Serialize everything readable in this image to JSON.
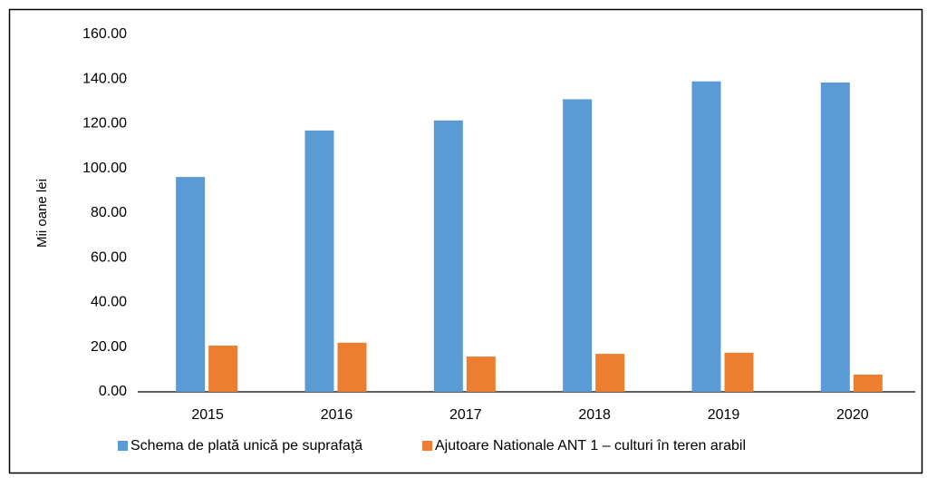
{
  "chart_data": {
    "type": "bar",
    "y_label": "Mii oane lei",
    "categories": [
      "2015",
      "2016",
      "2017",
      "2018",
      "2019",
      "2020"
    ],
    "series": [
      {
        "name": "Schema de plată unică pe suprafaţă",
        "color": "#5b9bd5",
        "values": [
          96.2,
          117,
          121.5,
          131,
          139,
          138.5
        ]
      },
      {
        "name": "Ajutoare Nationale ANT 1 – culturi în teren arabil",
        "color": "#ed7d31",
        "values": [
          20.7,
          22,
          15.8,
          17,
          17.5,
          7.7
        ]
      }
    ],
    "ylim": [
      0,
      160
    ],
    "yticks": [
      {
        "value": 0,
        "label": "0.00"
      },
      {
        "value": 20,
        "label": "20.00"
      },
      {
        "value": 40,
        "label": "40.00"
      },
      {
        "value": 60,
        "label": "60.00"
      },
      {
        "value": 80,
        "label": "80.00"
      },
      {
        "value": 100,
        "label": "100.00"
      },
      {
        "value": 120,
        "label": "120.00"
      },
      {
        "value": 140,
        "label": "140.00"
      },
      {
        "value": 160,
        "label": "160.00"
      }
    ],
    "grid": false,
    "legend": "bottom"
  }
}
